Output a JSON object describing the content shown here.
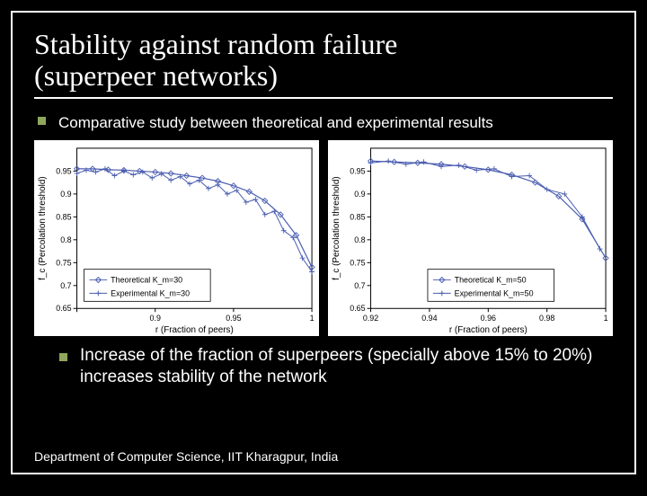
{
  "title_line1": "Stability against random failure",
  "title_line2": " (superpeer networks)",
  "bullet1": "Comparative study between theoretical and experimental results",
  "conclusion": "Increase of the fraction of superpeers (specially above 15% to 20%) increases stability of the network",
  "footer": "Department of Computer Science, IIT Kharagpur, India",
  "chart_left": {
    "type": "line",
    "xlabel": "r (Fraction of peers)",
    "ylabel": "f_c (Percolation threshold)",
    "xlim": [
      0.85,
      1.0
    ],
    "ylim": [
      0.65,
      1.0
    ],
    "xticks": [
      0.85,
      0.9,
      0.95,
      1.0
    ],
    "xtick_labels": [
      "",
      "0.9",
      "0.95",
      "1"
    ],
    "yticks": [
      0.65,
      0.7,
      0.75,
      0.8,
      0.85,
      0.9,
      0.95
    ],
    "ytick_labels": [
      "0.65",
      "0.7",
      "0.75",
      "0.8",
      "0.85",
      "0.9",
      "0.95"
    ],
    "background_color": "#ffffff",
    "axis_color": "#000000",
    "label_fontsize": 10,
    "tick_fontsize": 9,
    "legend": {
      "pos": "lower-left",
      "items": [
        "Theoretical K_m=30",
        "Experimental K_m=30"
      ]
    },
    "series": [
      {
        "name": "Theoretical",
        "color": "#4a5db0",
        "marker": "diamond",
        "line_width": 1.2,
        "x": [
          0.85,
          0.86,
          0.87,
          0.88,
          0.89,
          0.9,
          0.91,
          0.92,
          0.93,
          0.94,
          0.95,
          0.96,
          0.97,
          0.98,
          0.99,
          1.0
        ],
        "y": [
          0.955,
          0.955,
          0.953,
          0.952,
          0.95,
          0.948,
          0.945,
          0.94,
          0.935,
          0.928,
          0.918,
          0.905,
          0.885,
          0.855,
          0.81,
          0.74
        ]
      },
      {
        "name": "Experimental",
        "color": "#4a5db0",
        "marker": "plus",
        "line_width": 1.0,
        "x": [
          0.85,
          0.856,
          0.862,
          0.868,
          0.874,
          0.88,
          0.886,
          0.892,
          0.898,
          0.904,
          0.91,
          0.916,
          0.922,
          0.928,
          0.934,
          0.94,
          0.946,
          0.952,
          0.958,
          0.964,
          0.97,
          0.976,
          0.982,
          0.988,
          0.994,
          1.0
        ],
        "y": [
          0.945,
          0.952,
          0.948,
          0.955,
          0.94,
          0.95,
          0.942,
          0.948,
          0.935,
          0.944,
          0.93,
          0.938,
          0.922,
          0.93,
          0.912,
          0.92,
          0.9,
          0.908,
          0.882,
          0.888,
          0.855,
          0.862,
          0.82,
          0.805,
          0.76,
          0.73
        ]
      }
    ]
  },
  "chart_right": {
    "type": "line",
    "xlabel": "r (Fraction of peers)",
    "ylabel": "f_c (Percolation threshold)",
    "xlim": [
      0.92,
      1.0
    ],
    "ylim": [
      0.65,
      1.0
    ],
    "xticks": [
      0.92,
      0.94,
      0.96,
      0.98,
      1.0
    ],
    "xtick_labels": [
      "0.92",
      "0.94",
      "0.96",
      "0.98",
      "1"
    ],
    "yticks": [
      0.65,
      0.7,
      0.75,
      0.8,
      0.85,
      0.9,
      0.95
    ],
    "ytick_labels": [
      "0.65",
      "0.7",
      "0.75",
      "0.8",
      "0.85",
      "0.9",
      "0.95"
    ],
    "background_color": "#ffffff",
    "axis_color": "#000000",
    "label_fontsize": 10,
    "tick_fontsize": 9,
    "legend": {
      "pos": "lower-center",
      "items": [
        "Theoretical K_m=50",
        "Experimental K_m=50"
      ]
    },
    "series": [
      {
        "name": "Theoretical",
        "color": "#4a5db0",
        "marker": "diamond",
        "line_width": 1.2,
        "x": [
          0.92,
          0.928,
          0.936,
          0.944,
          0.952,
          0.96,
          0.968,
          0.976,
          0.984,
          0.992,
          1.0
        ],
        "y": [
          0.972,
          0.97,
          0.968,
          0.965,
          0.96,
          0.953,
          0.942,
          0.925,
          0.895,
          0.845,
          0.76
        ]
      },
      {
        "name": "Experimental",
        "color": "#4a5db0",
        "marker": "plus",
        "line_width": 1.0,
        "x": [
          0.92,
          0.926,
          0.932,
          0.938,
          0.944,
          0.95,
          0.956,
          0.962,
          0.968,
          0.974,
          0.98,
          0.986,
          0.992,
          0.998
        ],
        "y": [
          0.968,
          0.972,
          0.965,
          0.97,
          0.96,
          0.963,
          0.952,
          0.955,
          0.938,
          0.94,
          0.91,
          0.9,
          0.85,
          0.78
        ]
      }
    ]
  }
}
